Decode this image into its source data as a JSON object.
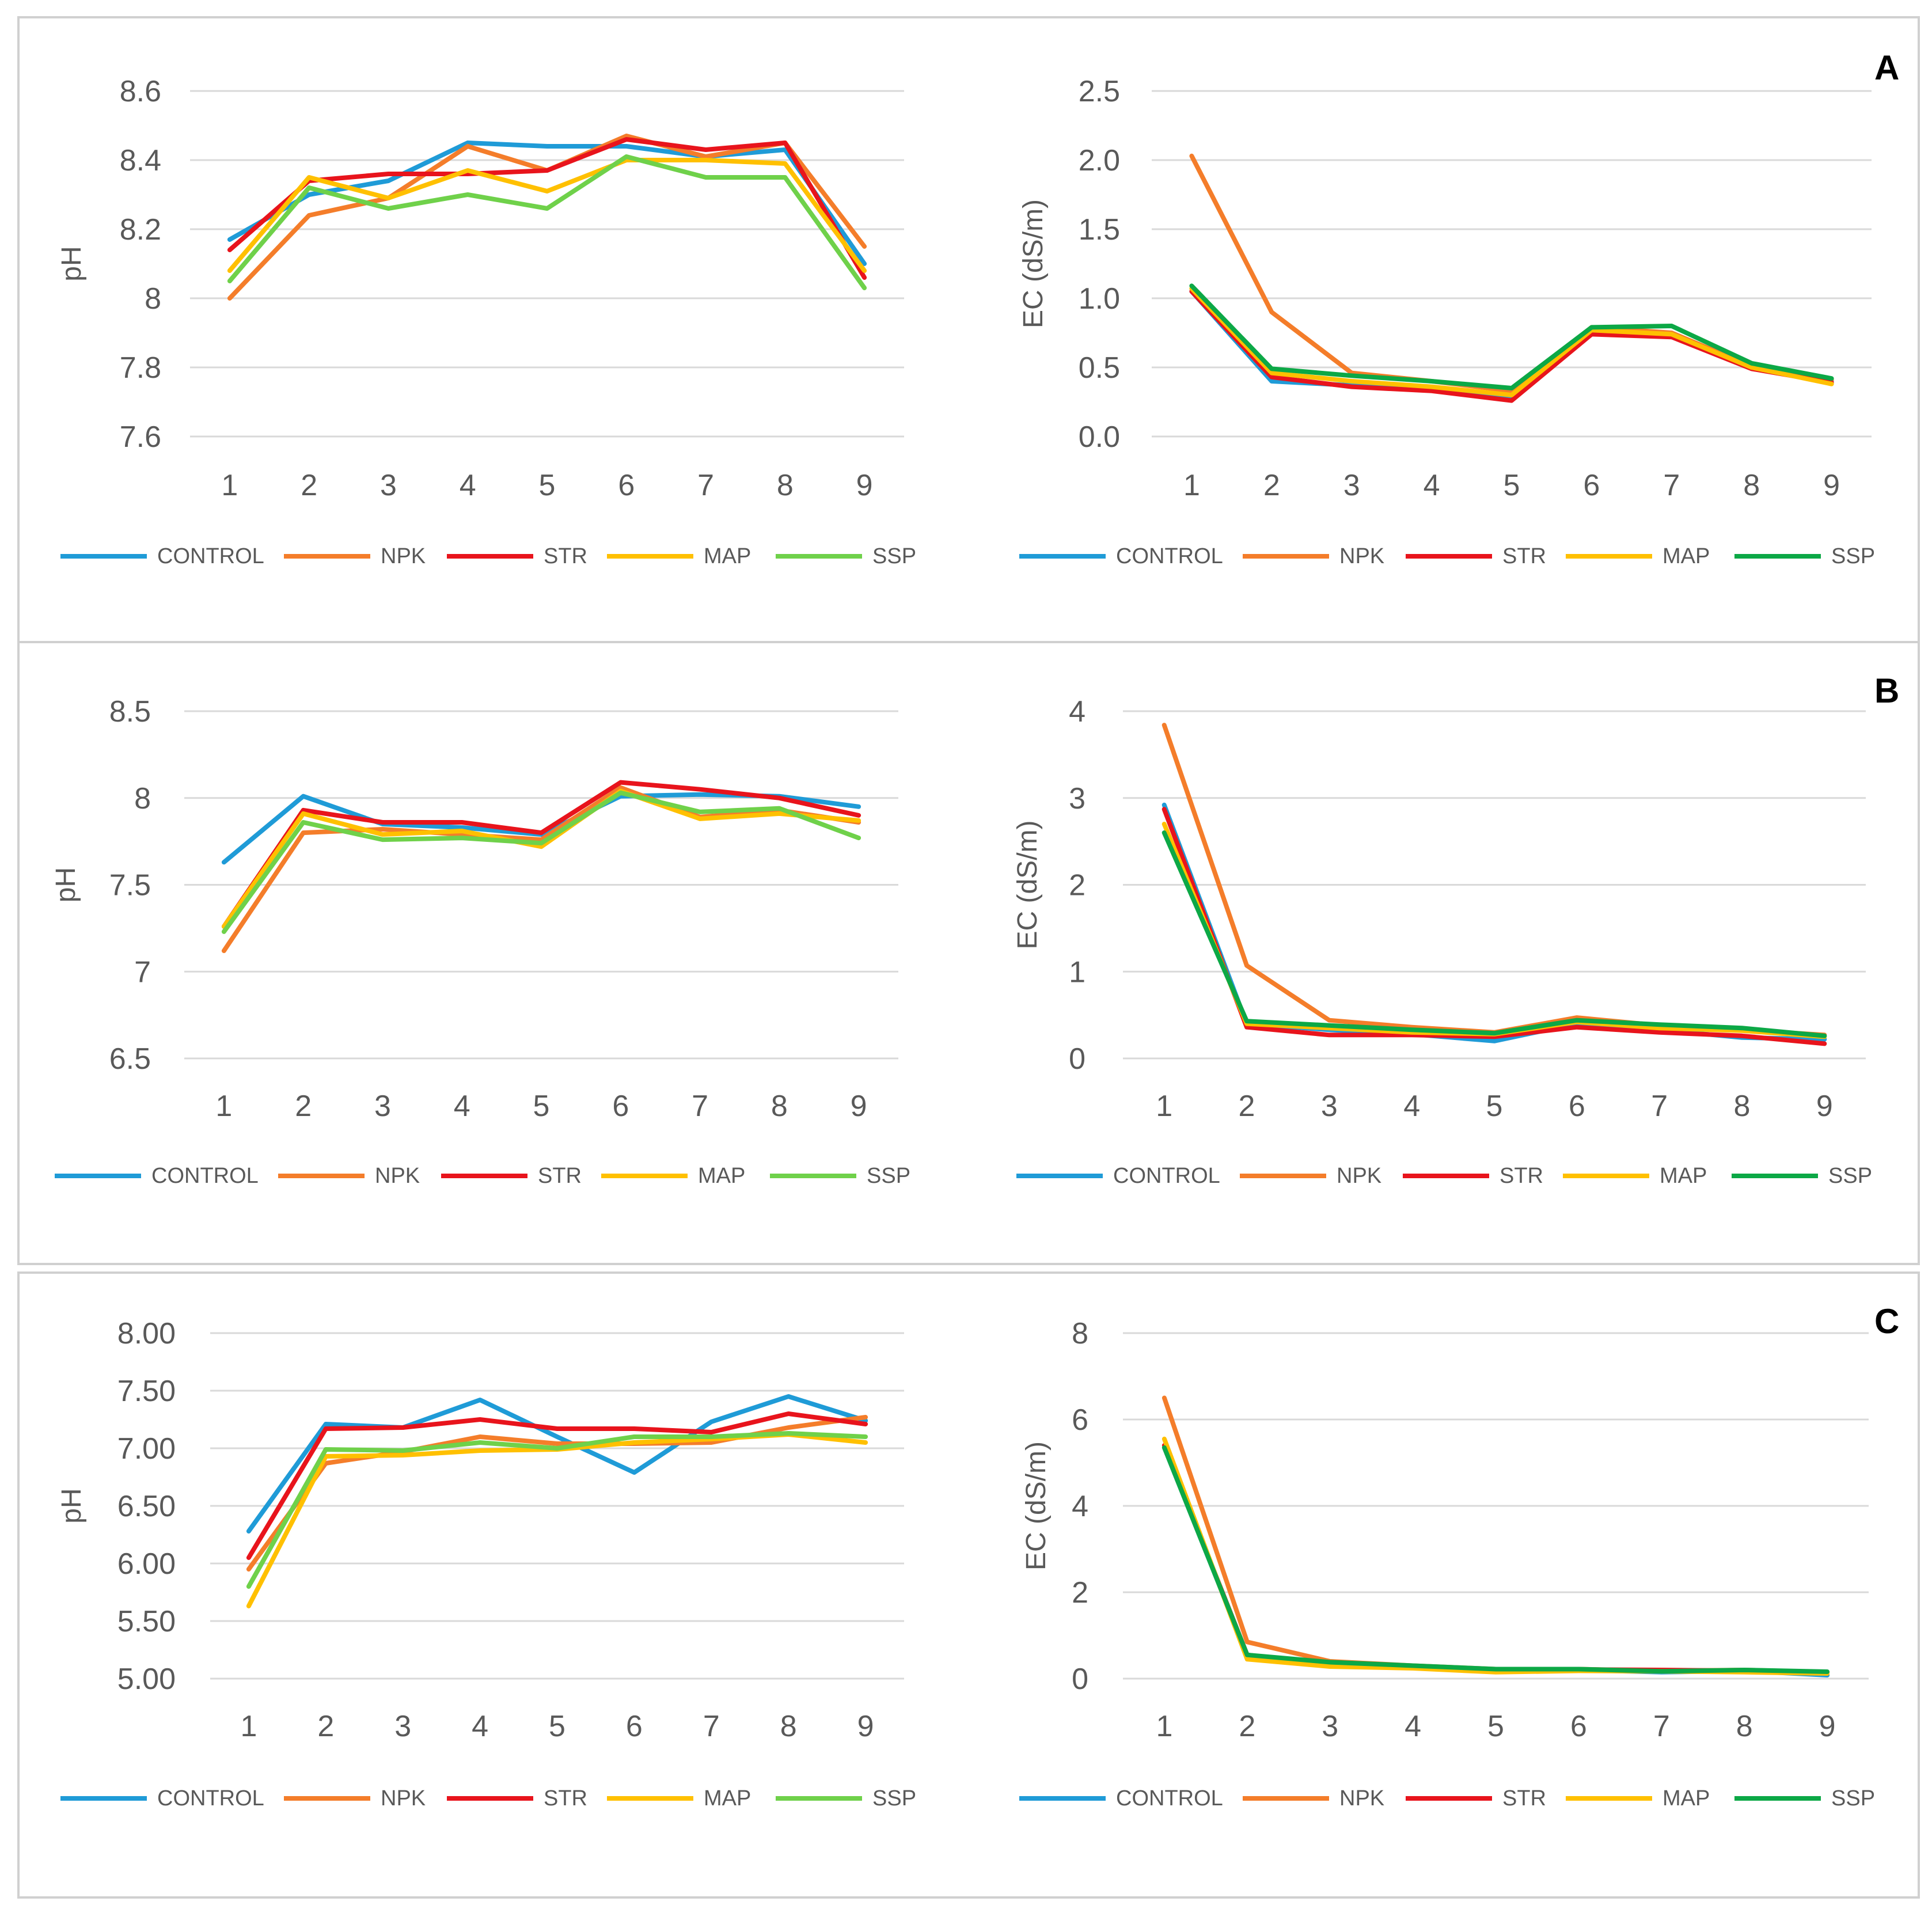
{
  "figure": {
    "panels": [
      {
        "id": "A",
        "letter": "A"
      },
      {
        "id": "B",
        "letter": "B"
      },
      {
        "id": "C",
        "letter": "C"
      }
    ]
  },
  "colors": {
    "CONTROL": "#1f9bd7",
    "NPK": "#f47d2a",
    "STR": "#e8141c",
    "MAP": "#ffc000",
    "SSP_light": "#6fd14a",
    "SSP_dark": "#0ca846"
  },
  "chart_data": [
    {
      "id": "A-pH",
      "panel": "A",
      "type": "line",
      "title": "",
      "xlabel": "",
      "ylabel": "pH",
      "categories": [
        "1",
        "2",
        "3",
        "4",
        "5",
        "6",
        "7",
        "8",
        "9"
      ],
      "ylim": [
        7.6,
        8.6
      ],
      "yticks": [
        7.6,
        7.8,
        8,
        8.2,
        8.4,
        8.6
      ],
      "ytick_labels": [
        "7.6",
        "7.8",
        "8",
        "8.2",
        "8.4",
        "8.6"
      ],
      "legend": [
        "CONTROL",
        "NPK",
        "STR",
        "MAP",
        "SSP"
      ],
      "series": [
        {
          "name": "CONTROL",
          "color": "#1f9bd7",
          "values": [
            8.17,
            8.3,
            8.34,
            8.45,
            8.44,
            8.44,
            8.41,
            8.43,
            8.1
          ]
        },
        {
          "name": "NPK",
          "color": "#f47d2a",
          "values": [
            8.0,
            8.24,
            8.29,
            8.44,
            8.37,
            8.47,
            8.41,
            8.45,
            8.15
          ]
        },
        {
          "name": "STR",
          "color": "#e8141c",
          "values": [
            8.14,
            8.34,
            8.36,
            8.36,
            8.37,
            8.46,
            8.43,
            8.45,
            8.06
          ]
        },
        {
          "name": "MAP",
          "color": "#ffc000",
          "values": [
            8.08,
            8.35,
            8.29,
            8.37,
            8.31,
            8.4,
            8.4,
            8.39,
            8.08
          ]
        },
        {
          "name": "SSP",
          "color": "#6fd14a",
          "values": [
            8.05,
            8.32,
            8.26,
            8.3,
            8.26,
            8.41,
            8.35,
            8.35,
            8.03
          ]
        }
      ]
    },
    {
      "id": "A-EC",
      "panel": "A",
      "type": "line",
      "title": "",
      "xlabel": "",
      "ylabel": "EC (dS/m)",
      "categories": [
        "1",
        "2",
        "3",
        "4",
        "5",
        "6",
        "7",
        "8",
        "9"
      ],
      "ylim": [
        0,
        2.5
      ],
      "yticks": [
        0,
        0.5,
        1,
        1.5,
        2,
        2.5
      ],
      "ytick_labels": [
        "0.0",
        "0.5",
        "1.0",
        "1.5",
        "2.0",
        "2.5"
      ],
      "legend": [
        "CONTROL",
        "NPK",
        "STR",
        "MAP",
        "SSP"
      ],
      "series": [
        {
          "name": "CONTROL",
          "color": "#1f9bd7",
          "values": [
            1.05,
            0.4,
            0.37,
            0.34,
            0.29,
            0.76,
            0.73,
            0.5,
            0.4
          ]
        },
        {
          "name": "NPK",
          "color": "#f47d2a",
          "values": [
            2.03,
            0.9,
            0.46,
            0.4,
            0.33,
            0.79,
            0.75,
            0.51,
            0.41
          ]
        },
        {
          "name": "STR",
          "color": "#e8141c",
          "values": [
            1.05,
            0.43,
            0.36,
            0.33,
            0.26,
            0.74,
            0.72,
            0.49,
            0.39
          ]
        },
        {
          "name": "MAP",
          "color": "#ffc000",
          "values": [
            1.07,
            0.46,
            0.4,
            0.36,
            0.3,
            0.77,
            0.74,
            0.5,
            0.38
          ]
        },
        {
          "name": "SSP",
          "color": "#0ca846",
          "values": [
            1.09,
            0.49,
            0.44,
            0.4,
            0.35,
            0.79,
            0.8,
            0.53,
            0.42
          ]
        }
      ]
    },
    {
      "id": "B-pH",
      "panel": "B",
      "type": "line",
      "title": "",
      "xlabel": "",
      "ylabel": "pH",
      "categories": [
        "1",
        "2",
        "3",
        "4",
        "5",
        "6",
        "7",
        "8",
        "9"
      ],
      "ylim": [
        6.5,
        8.5
      ],
      "yticks": [
        6.5,
        7,
        7.5,
        8,
        8.5
      ],
      "ytick_labels": [
        "6.5",
        "7",
        "7.5",
        "8",
        "8.5"
      ],
      "legend": [
        "CONTROL",
        "NPK",
        "STR",
        "MAP",
        "SSP"
      ],
      "series": [
        {
          "name": "CONTROL",
          "color": "#1f9bd7",
          "values": [
            7.63,
            8.01,
            7.85,
            7.83,
            7.79,
            8.01,
            8.02,
            8.01,
            7.95
          ]
        },
        {
          "name": "NPK",
          "color": "#f47d2a",
          "values": [
            7.12,
            7.8,
            7.82,
            7.79,
            7.76,
            8.06,
            7.89,
            7.93,
            7.86
          ]
        },
        {
          "name": "STR",
          "color": "#e8141c",
          "values": [
            7.26,
            7.93,
            7.86,
            7.86,
            7.8,
            8.09,
            8.05,
            8.0,
            7.9
          ]
        },
        {
          "name": "MAP",
          "color": "#ffc000",
          "values": [
            7.26,
            7.91,
            7.79,
            7.81,
            7.72,
            8.04,
            7.88,
            7.91,
            7.87
          ]
        },
        {
          "name": "SSP",
          "color": "#6fd14a",
          "values": [
            7.23,
            7.86,
            7.76,
            7.77,
            7.74,
            8.03,
            7.92,
            7.94,
            7.77
          ]
        }
      ]
    },
    {
      "id": "B-EC",
      "panel": "B",
      "type": "line",
      "title": "",
      "xlabel": "",
      "ylabel": "EC (dS/m)",
      "categories": [
        "1",
        "2",
        "3",
        "4",
        "5",
        "6",
        "7",
        "8",
        "9"
      ],
      "ylim": [
        0,
        4
      ],
      "yticks": [
        0,
        1,
        2,
        3,
        4
      ],
      "ytick_labels": [
        "0",
        "1",
        "2",
        "3",
        "4"
      ],
      "legend": [
        "CONTROL",
        "NPK",
        "STR",
        "MAP",
        "SSP"
      ],
      "series": [
        {
          "name": "CONTROL",
          "color": "#1f9bd7",
          "values": [
            2.92,
            0.4,
            0.33,
            0.28,
            0.2,
            0.4,
            0.33,
            0.24,
            0.22
          ]
        },
        {
          "name": "NPK",
          "color": "#f47d2a",
          "values": [
            3.84,
            1.07,
            0.44,
            0.36,
            0.3,
            0.47,
            0.38,
            0.33,
            0.27
          ]
        },
        {
          "name": "STR",
          "color": "#e8141c",
          "values": [
            2.87,
            0.36,
            0.27,
            0.27,
            0.25,
            0.36,
            0.3,
            0.26,
            0.17
          ]
        },
        {
          "name": "MAP",
          "color": "#ffc000",
          "values": [
            2.7,
            0.4,
            0.35,
            0.3,
            0.28,
            0.42,
            0.35,
            0.32,
            0.25
          ]
        },
        {
          "name": "SSP",
          "color": "#0ca846",
          "values": [
            2.6,
            0.43,
            0.38,
            0.33,
            0.29,
            0.44,
            0.39,
            0.35,
            0.26
          ]
        }
      ]
    },
    {
      "id": "C-pH",
      "panel": "C",
      "type": "line",
      "title": "",
      "xlabel": "",
      "ylabel": "pH",
      "categories": [
        "1",
        "2",
        "3",
        "4",
        "5",
        "6",
        "7",
        "8",
        "9"
      ],
      "ylim": [
        5.0,
        8.0
      ],
      "yticks": [
        5.0,
        5.5,
        6.0,
        6.5,
        7.0,
        7.5,
        8.0
      ],
      "ytick_labels": [
        "5.00",
        "5.50",
        "6.00",
        "6.50",
        "7.00",
        "7.50",
        "8.00"
      ],
      "legend": [
        "CONTROL",
        "NPK",
        "STR",
        "MAP",
        "SSP"
      ],
      "series": [
        {
          "name": "CONTROL",
          "color": "#1f9bd7",
          "values": [
            6.28,
            7.21,
            7.18,
            7.42,
            7.1,
            6.79,
            7.23,
            7.45,
            7.24
          ]
        },
        {
          "name": "NPK",
          "color": "#f47d2a",
          "values": [
            5.95,
            6.87,
            6.97,
            7.1,
            7.04,
            7.04,
            7.05,
            7.18,
            7.27
          ]
        },
        {
          "name": "STR",
          "color": "#e8141c",
          "values": [
            6.05,
            7.17,
            7.18,
            7.25,
            7.17,
            7.17,
            7.14,
            7.3,
            7.21
          ]
        },
        {
          "name": "MAP",
          "color": "#ffc000",
          "values": [
            5.63,
            6.93,
            6.94,
            6.98,
            6.99,
            7.05,
            7.08,
            7.12,
            7.05
          ]
        },
        {
          "name": "SSP",
          "color": "#6fd14a",
          "values": [
            5.8,
            6.99,
            6.98,
            7.05,
            7.0,
            7.1,
            7.1,
            7.13,
            7.1
          ]
        }
      ]
    },
    {
      "id": "C-EC",
      "panel": "C",
      "type": "line",
      "title": "",
      "xlabel": "",
      "ylabel": "EC (dS/m)",
      "categories": [
        "1",
        "2",
        "3",
        "4",
        "5",
        "6",
        "7",
        "8",
        "9"
      ],
      "ylim": [
        0,
        8
      ],
      "yticks": [
        0,
        2,
        4,
        6,
        8
      ],
      "ytick_labels": [
        "0",
        "2",
        "4",
        "6",
        "8"
      ],
      "legend": [
        "CONTROL",
        "NPK",
        "STR",
        "MAP",
        "SSP"
      ],
      "series": [
        {
          "name": "CONTROL",
          "color": "#1f9bd7",
          "values": [
            5.35,
            0.55,
            0.32,
            0.26,
            0.2,
            0.2,
            0.15,
            0.18,
            0.08
          ]
        },
        {
          "name": "NPK",
          "color": "#f47d2a",
          "values": [
            6.5,
            0.85,
            0.4,
            0.3,
            0.22,
            0.22,
            0.18,
            0.2,
            0.15
          ]
        },
        {
          "name": "STR",
          "color": "#e8141c",
          "values": [
            5.4,
            0.55,
            0.33,
            0.25,
            0.19,
            0.21,
            0.2,
            0.18,
            0.14
          ]
        },
        {
          "name": "MAP",
          "color": "#ffc000",
          "values": [
            5.55,
            0.45,
            0.28,
            0.24,
            0.15,
            0.18,
            0.17,
            0.15,
            0.12
          ]
        },
        {
          "name": "SSP",
          "color": "#0ca846",
          "values": [
            5.35,
            0.55,
            0.38,
            0.3,
            0.22,
            0.22,
            0.17,
            0.2,
            0.16
          ]
        }
      ]
    }
  ]
}
